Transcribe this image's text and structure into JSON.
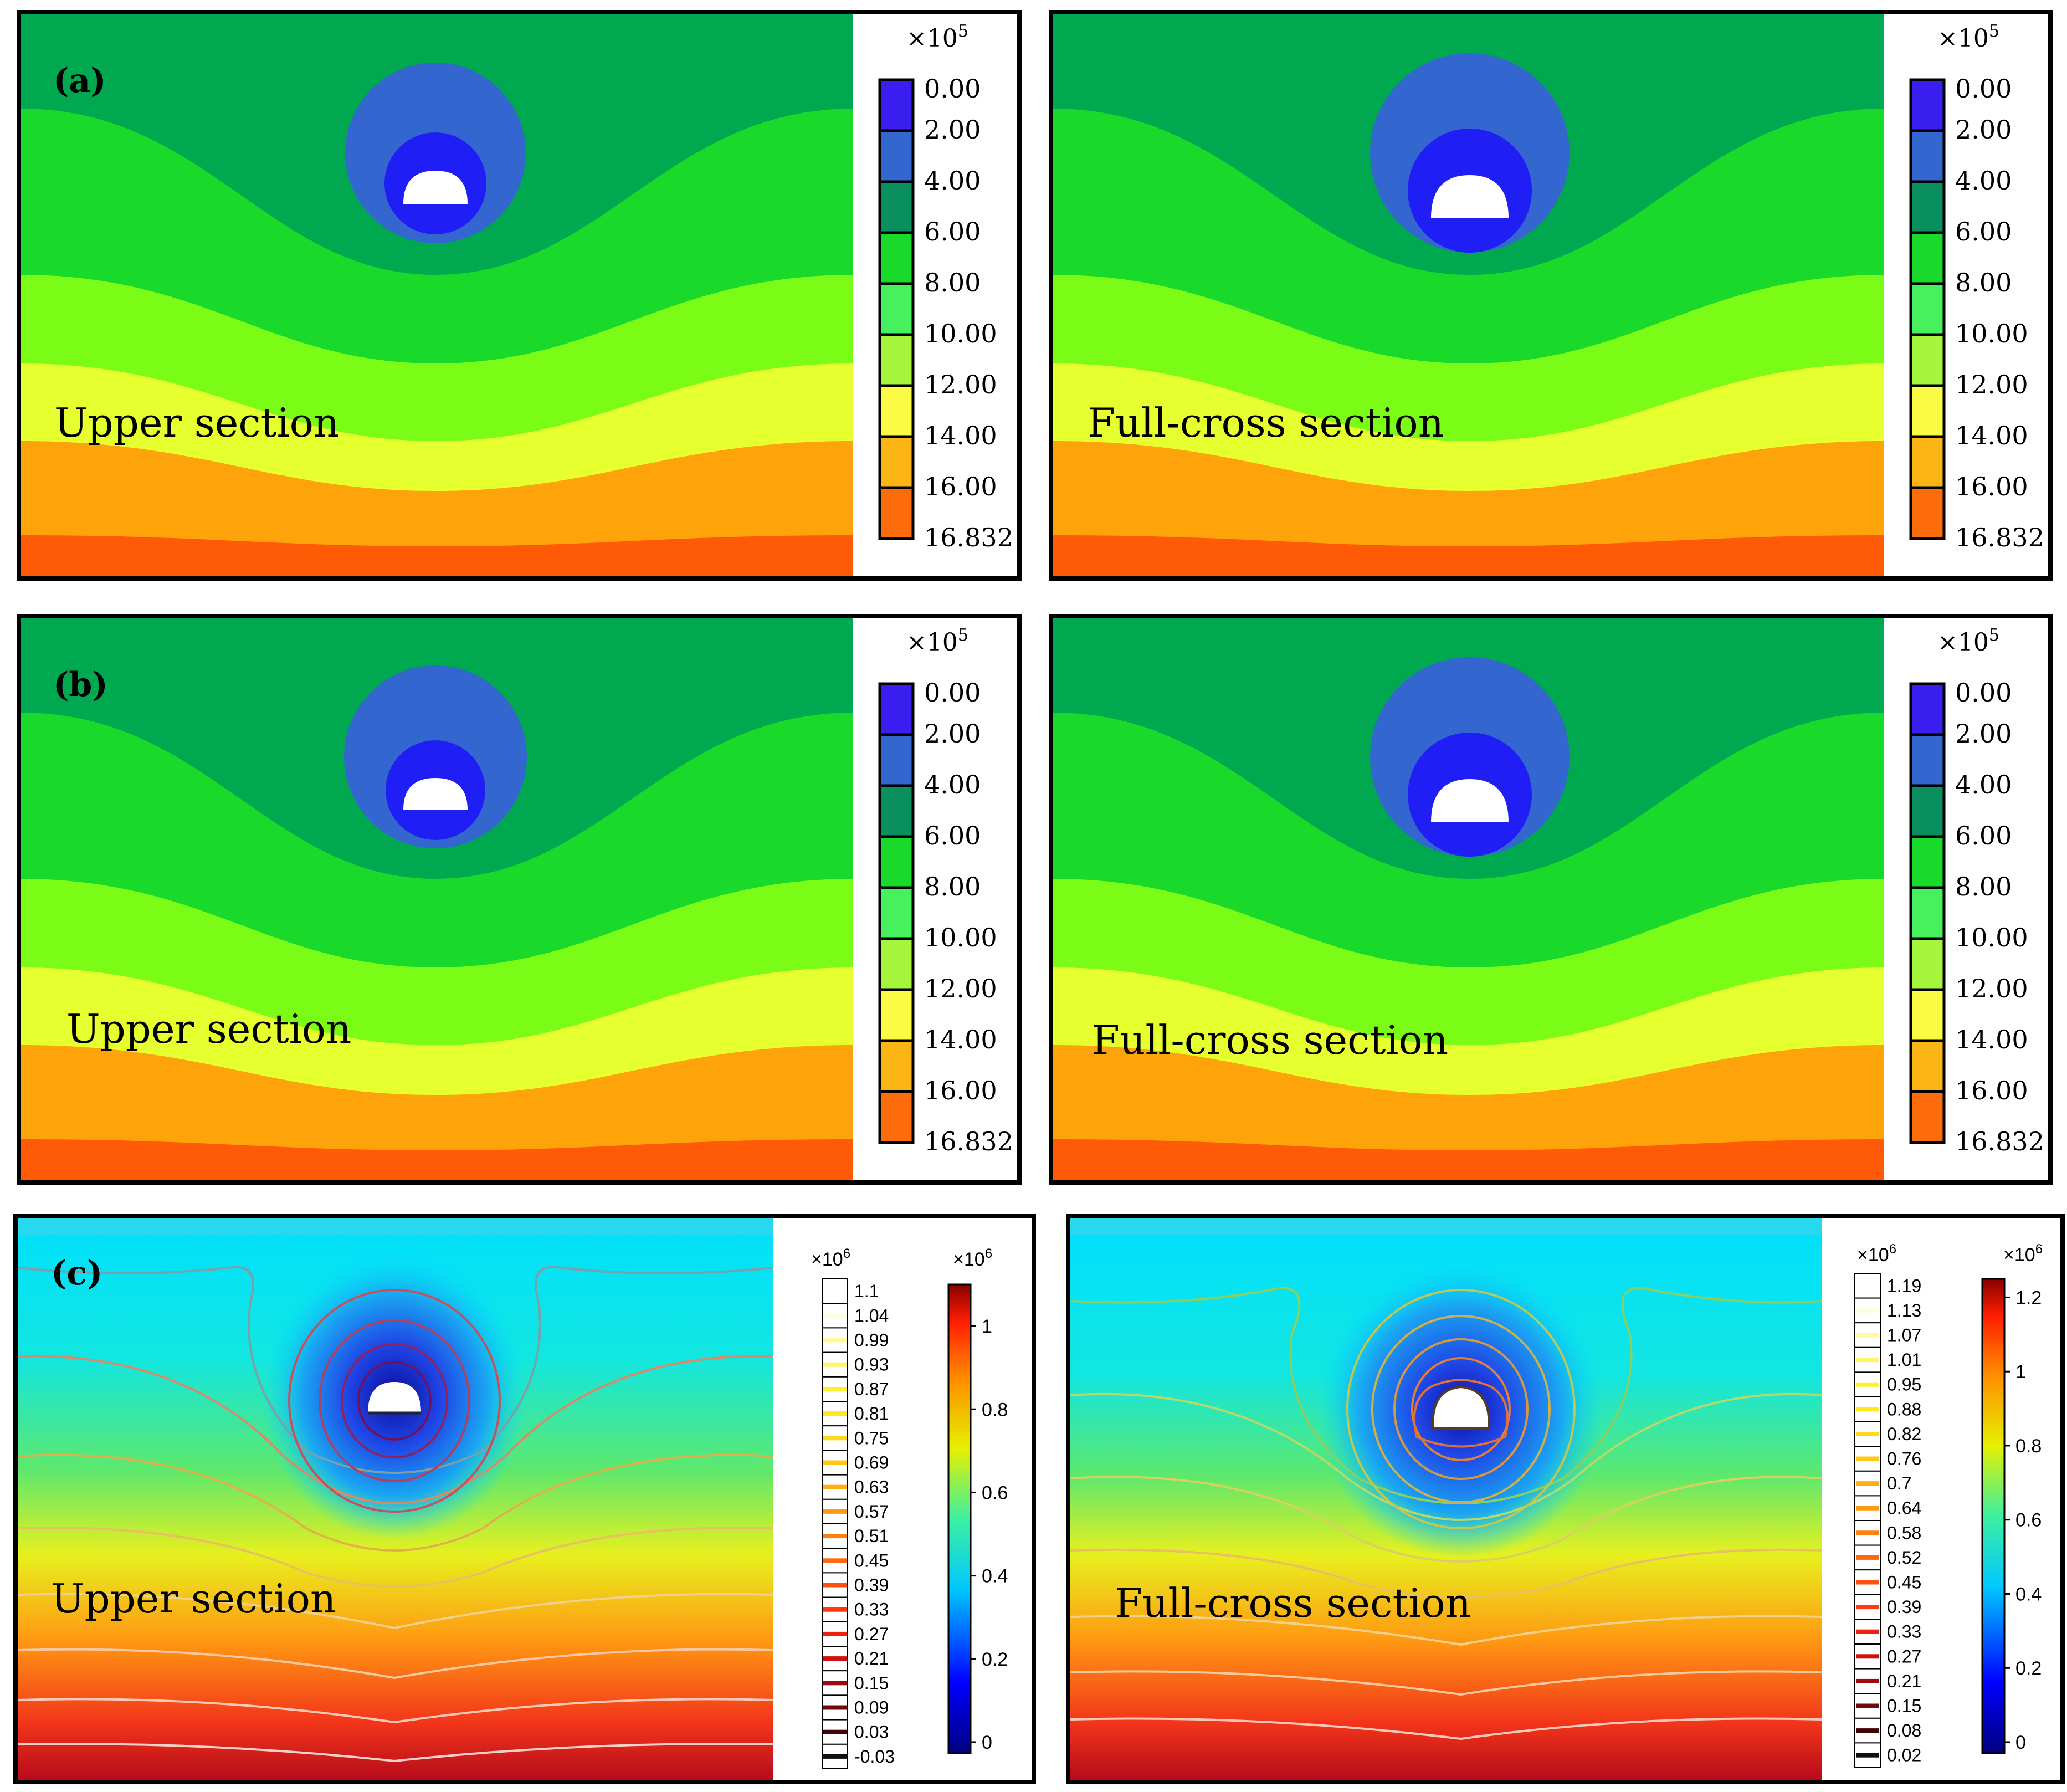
{
  "figure": {
    "labels": {
      "a": "(a)",
      "b": "(b)",
      "c": "(c)"
    },
    "exponent5": "×10",
    "exp5": "5",
    "exp6": "6",
    "section_upper": "Upper section",
    "section_full": "Full-cross section"
  },
  "legend_ab": {
    "values": [
      "0.00",
      "2.00",
      "4.00",
      "6.00",
      "8.00",
      "10.00",
      "12.00",
      "14.00",
      "16.00",
      "16.832"
    ],
    "colors": [
      "#3a1ef0",
      "#3367cf",
      "#0a8f5e",
      "#19d92a",
      "#47f05d",
      "#a6f53d",
      "#fbfb45",
      "#fbb515",
      "#fd6c0b"
    ]
  },
  "legend_c_left": {
    "values": [
      "1.1",
      "1.04",
      "0.99",
      "0.93",
      "0.87",
      "0.81",
      "0.75",
      "0.69",
      "0.63",
      "0.57",
      "0.51",
      "0.45",
      "0.39",
      "0.33",
      "0.27",
      "0.21",
      "0.15",
      "0.09",
      "0.03",
      "-0.03"
    ],
    "colorbar_ticks": [
      "1",
      "0.8",
      "0.6",
      "0.4",
      "0.2",
      "0"
    ]
  },
  "legend_c_right": {
    "values": [
      "1.19",
      "1.13",
      "1.07",
      "1.01",
      "0.95",
      "0.88",
      "0.82",
      "0.76",
      "0.7",
      "0.64",
      "0.58",
      "0.52",
      "0.45",
      "0.39",
      "0.33",
      "0.27",
      "0.21",
      "0.15",
      "0.08",
      "0.02"
    ],
    "colorbar_ticks": [
      "1.2",
      "1",
      "0.8",
      "0.6",
      "0.4",
      "0.2",
      "0"
    ]
  }
}
